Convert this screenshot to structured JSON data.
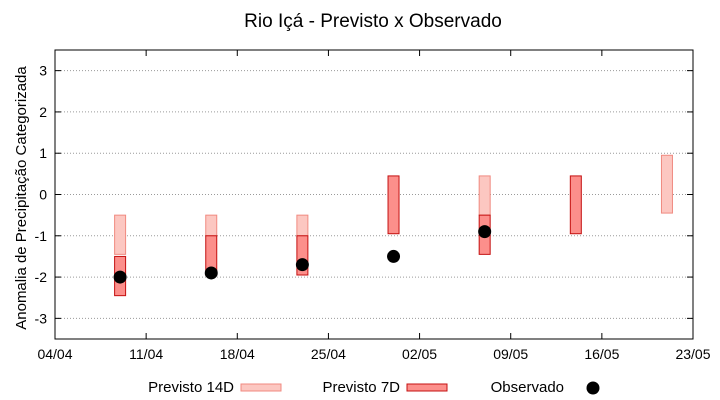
{
  "chart_data": {
    "type": "range-bar-with-points",
    "title": "Rio Içá - Previsto x Observado",
    "ylabel": "Anomalia de Precipitação Categorizada",
    "xlabel": "",
    "grid": true,
    "legend_placement": "bottom",
    "x_ticks": [
      "04/04",
      "11/04",
      "18/04",
      "25/04",
      "02/05",
      "09/05",
      "16/05",
      "23/05"
    ],
    "y_ticks": [
      "-3",
      "-2",
      "-1",
      "0",
      "1",
      "2",
      "3"
    ],
    "y_range": [
      -3.5,
      3.5
    ],
    "series": [
      {
        "name": "Previsto 14D",
        "kind": "range",
        "fill": "#fcc7c1",
        "stroke": "#f08a80",
        "points": [
          {
            "date": "2024-04-09",
            "low": -1.45,
            "high": -0.5
          },
          {
            "date": "2024-04-16",
            "low": -1.0,
            "high": -0.5
          },
          {
            "date": "2024-04-23",
            "low": -1.0,
            "high": -0.5
          },
          {
            "date": "2024-05-07",
            "low": -0.5,
            "high": 0.45
          },
          {
            "date": "2024-05-21",
            "low": -0.45,
            "high": 0.95
          }
        ]
      },
      {
        "name": "Previsto 7D",
        "kind": "range",
        "fill": "#fc8f8b",
        "stroke": "#c41010",
        "points": [
          {
            "date": "2024-04-09",
            "low": -2.45,
            "high": -1.5
          },
          {
            "date": "2024-04-16",
            "low": -1.95,
            "high": -1.0
          },
          {
            "date": "2024-04-23",
            "low": -1.95,
            "high": -1.0
          },
          {
            "date": "2024-04-30",
            "low": -0.95,
            "high": 0.45
          },
          {
            "date": "2024-05-07",
            "low": -1.45,
            "high": -0.5
          },
          {
            "date": "2024-05-14",
            "low": -0.95,
            "high": 0.45
          }
        ]
      },
      {
        "name": "Observado",
        "kind": "point",
        "color": "#000000",
        "points": [
          {
            "date": "2024-04-09",
            "value": -2.0
          },
          {
            "date": "2024-04-16",
            "value": -1.9
          },
          {
            "date": "2024-04-23",
            "value": -1.7
          },
          {
            "date": "2024-04-30",
            "value": -1.5
          },
          {
            "date": "2024-05-07",
            "value": -0.9
          }
        ]
      }
    ]
  }
}
